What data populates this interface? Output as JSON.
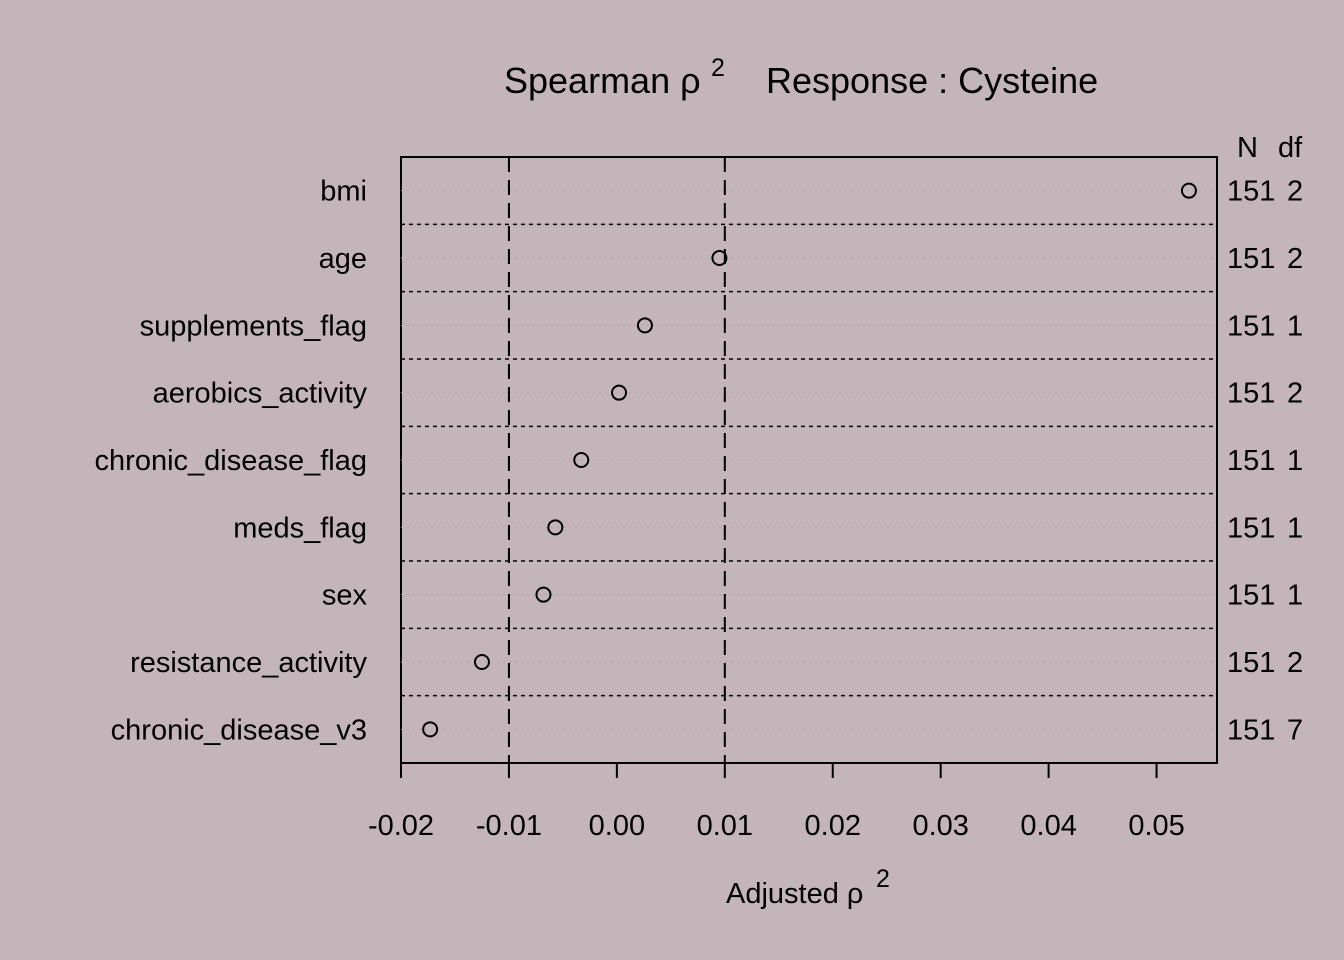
{
  "chart_data": {
    "type": "scatter",
    "title": {
      "prefix": "Spearman ρ",
      "superscript": "2",
      "suffix": "Response : Cysteine"
    },
    "xlabel": {
      "text": "Adjusted ρ",
      "superscript": "2"
    },
    "xlim": [
      -0.02,
      0.0556
    ],
    "x_ticks": [
      "-0.02",
      "-0.01",
      "0.00",
      "0.01",
      "0.02",
      "0.03",
      "0.04",
      "0.05"
    ],
    "x_tick_values": [
      -0.02,
      -0.01,
      0.0,
      0.01,
      0.02,
      0.03,
      0.04,
      0.05
    ],
    "reference_lines": [
      -0.01,
      0.01
    ],
    "columns": [
      "N",
      "df"
    ],
    "categories": [
      "bmi",
      "age",
      "supplements_flag",
      "aerobics_activity",
      "chronic_disease_flag",
      "meds_flag",
      "sex",
      "resistance_activity",
      "chronic_disease_v3"
    ],
    "values": [
      0.053,
      0.0095,
      0.0026,
      0.0002,
      -0.0033,
      -0.0057,
      -0.0068,
      -0.0125,
      -0.0173
    ],
    "N": [
      "151",
      "151",
      "151",
      "151",
      "151",
      "151",
      "151",
      "151",
      "151"
    ],
    "df": [
      "2",
      "2",
      "1",
      "2",
      "1",
      "1",
      "1",
      "2",
      "7"
    ],
    "grid": true,
    "background": "#c3b5ba"
  }
}
